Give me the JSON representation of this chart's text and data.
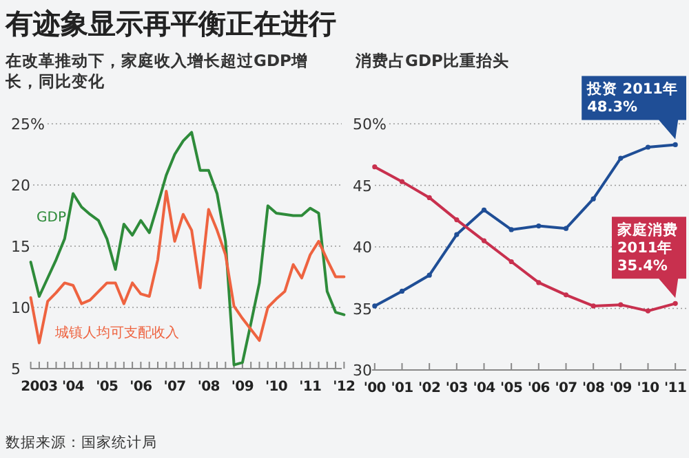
{
  "chart_data": [
    {
      "type": "line",
      "title": "有迹象显示再平衡正在进行",
      "subtitle": "在改革推动下，家庭收入增长超过GDP增长，同比变化",
      "ylim": [
        5,
        25
      ],
      "yticks": [
        5,
        10,
        15,
        20,
        {
          "value": 25,
          "label": "25%"
        }
      ],
      "categories": [
        null,
        "2003",
        null,
        null,
        null,
        "'04",
        null,
        null,
        null,
        "'05",
        null,
        null,
        null,
        "'06",
        null,
        null,
        null,
        "'07",
        null,
        null,
        null,
        "'08",
        null,
        null,
        null,
        "'09",
        null,
        null,
        null,
        "'10",
        null,
        null,
        null,
        "'11",
        null,
        null,
        null,
        "'12"
      ],
      "grid": "y",
      "marker": "none",
      "annotations": [
        "数据来源：国家统计局"
      ],
      "series": [
        {
          "name": "GDP",
          "color": "#2e8b3a",
          "values": [
            13.7,
            10.9,
            12.4,
            13.9,
            15.6,
            19.3,
            18.2,
            17.6,
            17.1,
            15.6,
            13.1,
            16.8,
            15.9,
            17.1,
            16.1,
            18.4,
            20.8,
            22.5,
            23.6,
            24.3,
            21.2,
            21.2,
            19.3,
            15.4,
            5.3,
            5.5,
            8.7,
            12.0,
            18.3,
            17.7,
            17.6,
            17.5,
            17.5,
            18.1,
            17.7,
            11.3,
            9.6,
            9.4
          ]
        },
        {
          "name": "城镇人均可支配收入",
          "color": "#ee6340",
          "values": [
            10.8,
            7.1,
            10.5,
            11.2,
            12.0,
            11.8,
            10.3,
            10.6,
            11.3,
            12.0,
            12.0,
            10.3,
            12.0,
            11.1,
            10.9,
            13.9,
            19.5,
            15.4,
            17.6,
            16.3,
            11.6,
            18.0,
            16.3,
            14.3,
            10.1,
            9.1,
            8.2,
            7.3,
            10.0,
            10.7,
            11.3,
            13.5,
            12.4,
            14.3,
            15.4,
            13.9,
            12.5,
            12.5
          ]
        }
      ]
    },
    {
      "type": "line",
      "subtitle": "消费占GDP比重抬头",
      "categories": [
        "'00",
        "'01",
        "'02",
        "'03",
        "'04",
        "'05",
        "'06",
        "'07",
        "'08",
        "'09",
        "'10",
        "'11"
      ],
      "ylim": [
        30,
        50
      ],
      "yticks": [
        30,
        35,
        40,
        45,
        {
          "value": 50,
          "label": "50%"
        }
      ],
      "grid": "y",
      "marker": "circle",
      "annotations": [
        {
          "text": "投资 2011年\n48.3%",
          "x": "'11",
          "y": 48.3
        },
        {
          "text": "家庭消费\n2011年\n35.4%",
          "x": "'11",
          "y": 35.4
        }
      ],
      "series": [
        {
          "color": "#1f4e96",
          "values": [
            35.2,
            36.4,
            37.7,
            41.0,
            43.0,
            41.4,
            41.7,
            41.5,
            43.9,
            47.2,
            48.1,
            48.3
          ]
        },
        {
          "color": "#c8304e",
          "values": [
            46.5,
            45.3,
            44.0,
            42.2,
            40.5,
            38.8,
            37.1,
            36.1,
            35.2,
            35.3,
            34.8,
            35.4
          ]
        }
      ]
    }
  ]
}
